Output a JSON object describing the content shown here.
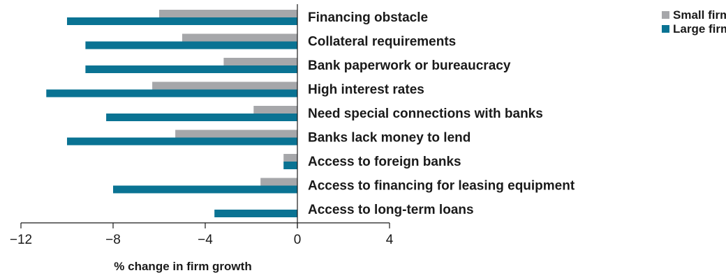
{
  "chart_data": {
    "type": "bar",
    "orientation": "horizontal",
    "categories": [
      "Financing obstacle",
      "Collateral requirements",
      "Bank paperwork or bureaucracy",
      "High interest rates",
      "Need special connections with banks",
      "Banks lack money to lend",
      "Access to foreign banks",
      "Access to financing for leasing equipment",
      "Access to long-term loans"
    ],
    "series": [
      {
        "name": "Small firms",
        "color": "#a6a7aa",
        "values": [
          -6.0,
          -5.0,
          -3.2,
          -6.3,
          -1.9,
          -5.3,
          -0.6,
          -1.6,
          0
        ]
      },
      {
        "name": "Large firms",
        "color": "#0a7393",
        "values": [
          -10.0,
          -9.2,
          -9.2,
          -10.9,
          -8.3,
          -10.0,
          -0.6,
          -8.0,
          -3.6
        ]
      }
    ],
    "xlabel": "% change in firm growth",
    "xlim": [
      -12,
      4
    ],
    "xticks": [
      -12,
      -8,
      -4,
      0,
      4
    ],
    "tick_labels": [
      "−12",
      "−8",
      "−4",
      "0",
      "4"
    ],
    "grid": false,
    "legend_position": "top-right"
  }
}
